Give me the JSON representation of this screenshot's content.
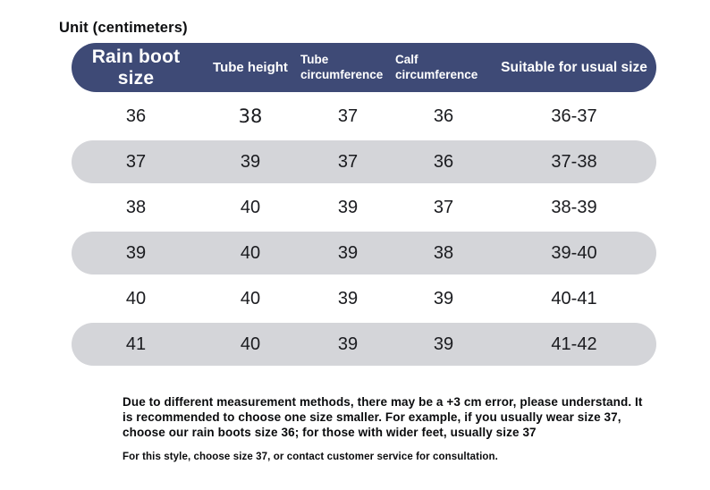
{
  "title": "Unit (centimeters)",
  "colors": {
    "header_bg": "#3e4a76",
    "header_text": "#ffffff",
    "row_alt_bg": "#d4d5d9",
    "cell_text": "#1a1b1f",
    "page_bg": "#ffffff"
  },
  "chart_data": {
    "type": "table",
    "title": "Unit (centimeters)",
    "columns": [
      "Rain boot size",
      "Tube height",
      "Tube circumference",
      "Calf circumference",
      "Suitable for usual size"
    ],
    "rows": [
      [
        "36",
        "38",
        "37",
        "36",
        "36-37"
      ],
      [
        "37",
        "39",
        "37",
        "36",
        "37-38"
      ],
      [
        "38",
        "40",
        "39",
        "37",
        "38-39"
      ],
      [
        "39",
        "40",
        "39",
        "38",
        "39-40"
      ],
      [
        "40",
        "40",
        "39",
        "39",
        "40-41"
      ],
      [
        "41",
        "40",
        "39",
        "39",
        "41-42"
      ]
    ],
    "layout_hints": {
      "alternating_row_shading": "even rows shaded gray pills",
      "header_style": "dark navy pill with white bold text"
    }
  },
  "notes": {
    "measurement_note": "Due to different measurement methods, there may be a +3 cm error, please understand. It is recommended to choose one size smaller. For example, if you usually wear size 37, choose our rain boots size 36; for those with wider feet, usually size 37",
    "style_note": "For this style, choose size 37, or contact customer service for consultation."
  }
}
